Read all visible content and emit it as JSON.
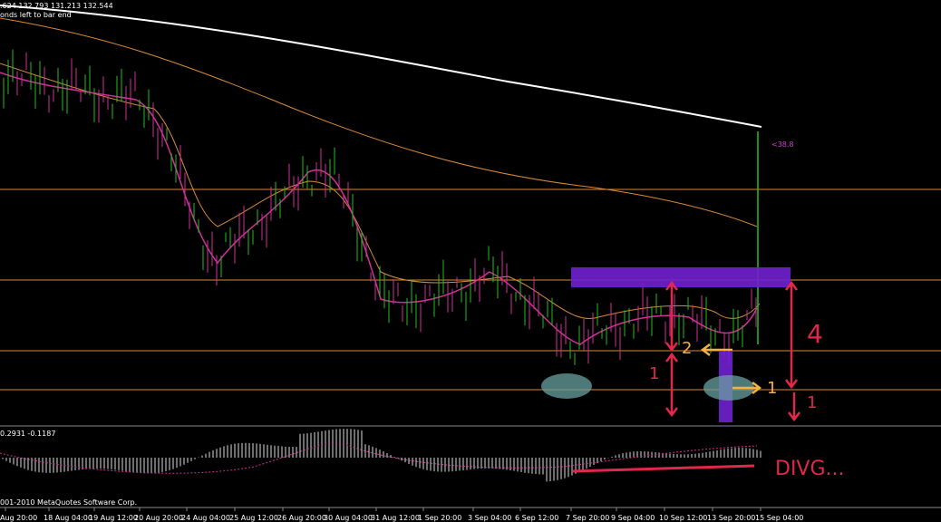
{
  "header": {
    "prices": ".624 132.793 131.213 132.544",
    "timer": "onds left to bar end"
  },
  "price_label": "<38.8",
  "indicator_label": "0.2931 -0.1187",
  "copyright": "001-2010 MetaQuotes Software Corp.",
  "annotations": {
    "big": "4",
    "two": "2",
    "one_left": "1",
    "one_arrow": "1",
    "one_right": "1",
    "divergence": "DIVG..."
  },
  "time_axis": [
    "Aug 20:00",
    "18 Aug 04:00",
    "19 Aug 12:00",
    "20 Aug 20:00",
    "24 Aug 04:00",
    "25 Aug 12:00",
    "26 Aug 20:00",
    "30 Aug 04:00",
    "31 Aug 12:00",
    "1 Sep 20:00",
    "3 Sep 04:00",
    "6 Sep 12:00",
    "7 Sep 20:00",
    "9 Sep 04:00",
    "10 Sep 12:00",
    "13 Sep 20:00",
    "15 Sep 04:00"
  ]
}
